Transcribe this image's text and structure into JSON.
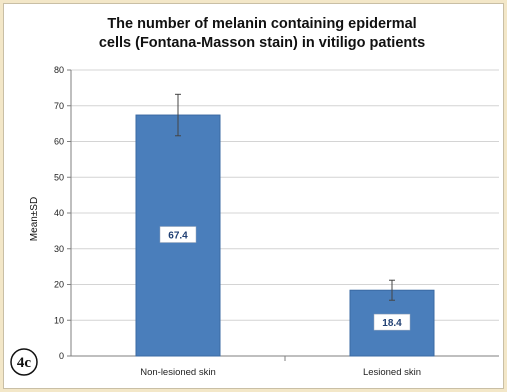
{
  "panel_label": "4c",
  "chart_data": {
    "type": "bar",
    "title_lines": [
      "The number of melanin containing epidermal",
      "cells (Fontana-Masson stain) in vitiligo patients"
    ],
    "ylabel": "Mean±SD",
    "xlabel": "",
    "ylim": [
      0,
      80
    ],
    "yticks": [
      0,
      10,
      20,
      30,
      40,
      50,
      60,
      70,
      80
    ],
    "categories": [
      "Non-lesioned skin",
      "Lesioned skin"
    ],
    "values": [
      67.4,
      18.4
    ],
    "error": [
      5.8,
      2.8
    ],
    "data_labels": [
      "67.4",
      "18.4"
    ],
    "grid": true,
    "legend": "none",
    "colors": {
      "bar": "#4a7ebb",
      "bar_edge": "#3a6aa3",
      "grid": "#d4d4d4",
      "axis": "#7f7f7f",
      "error": "#444444"
    }
  }
}
